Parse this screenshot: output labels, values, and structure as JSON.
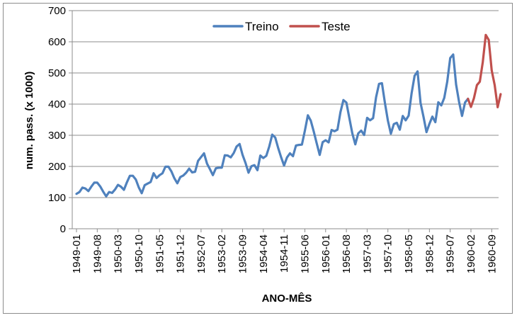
{
  "chart_data": {
    "type": "line",
    "title": "",
    "xlabel": "ANO-MÊS",
    "ylabel": "num. pass. (x 1000)",
    "ylim": [
      0,
      700
    ],
    "yticks": [
      0,
      100,
      200,
      300,
      400,
      500,
      600,
      700
    ],
    "grid": "horizontal",
    "legend_position": "top-center",
    "x_tick_labels": [
      "1949-01",
      "1949-08",
      "1950-03",
      "1950-10",
      "1951-05",
      "1951-12",
      "1952-07",
      "1953-02",
      "1953-09",
      "1954-04",
      "1954-11",
      "1955-06",
      "1956-01",
      "1956-08",
      "1957-03",
      "1957-10",
      "1958-05",
      "1958-12",
      "1959-07",
      "1960-02",
      "1960-09"
    ],
    "series": [
      {
        "name": "Treino",
        "color": "#4f81bd",
        "start": "1949-01",
        "values": [
          112,
          118,
          132,
          129,
          121,
          135,
          148,
          148,
          136,
          119,
          104,
          118,
          115,
          126,
          141,
          135,
          125,
          149,
          170,
          170,
          158,
          133,
          114,
          140,
          145,
          150,
          178,
          163,
          172,
          178,
          199,
          199,
          184,
          162,
          146,
          166,
          171,
          180,
          193,
          181,
          183,
          218,
          230,
          242,
          209,
          191,
          172,
          194,
          196,
          196,
          236,
          235,
          229,
          243,
          264,
          272,
          237,
          211,
          180,
          201,
          204,
          188,
          235,
          227,
          234,
          264,
          302,
          293,
          259,
          229,
          203,
          229,
          242,
          233,
          267,
          269,
          270,
          315,
          364,
          347,
          312,
          274,
          237,
          278,
          284,
          277,
          317,
          313,
          318,
          374,
          413,
          405,
          355,
          306,
          271,
          306,
          315,
          301,
          356,
          348,
          355,
          422,
          465,
          467,
          404,
          347,
          305,
          336,
          340,
          318,
          362,
          348,
          363,
          435,
          491,
          505,
          404,
          359,
          310,
          337,
          360,
          342,
          406,
          396,
          420,
          472,
          548,
          559,
          463,
          407,
          362,
          405,
          417
        ]
      },
      {
        "name": "Teste",
        "color": "#c0504d",
        "start": "1960-01",
        "values": [
          417,
          391,
          419,
          461,
          472,
          535,
          622,
          606,
          508,
          461,
          390,
          432
        ]
      }
    ]
  }
}
